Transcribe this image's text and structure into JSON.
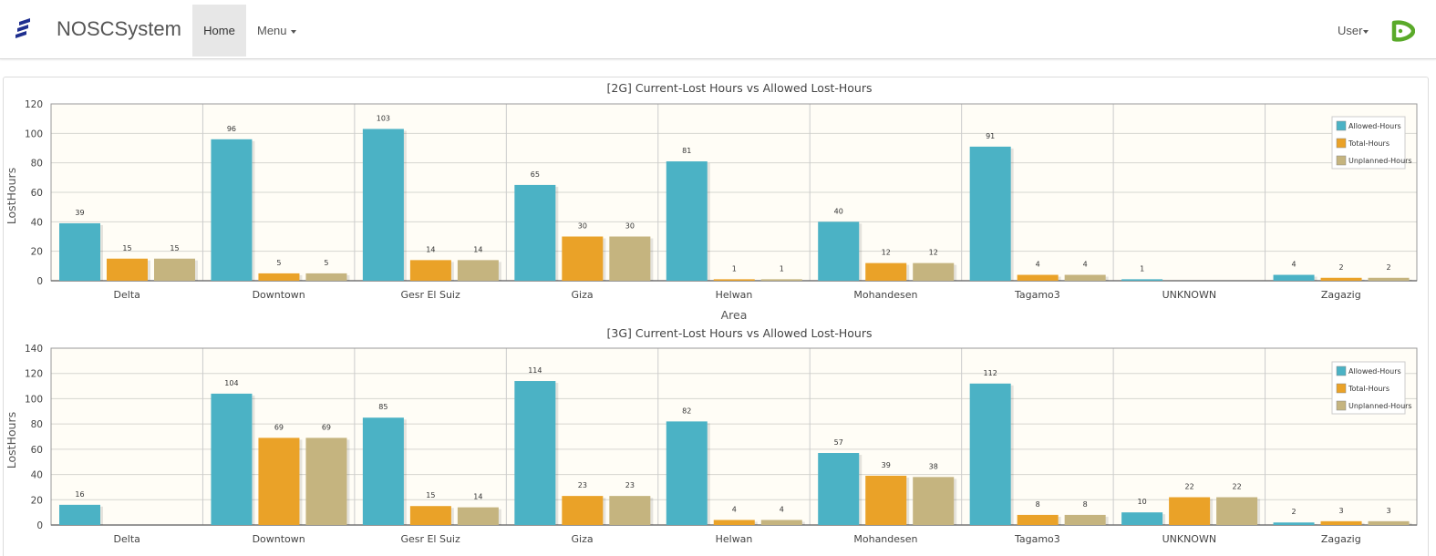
{
  "navbar": {
    "brand": "NOSCSystem",
    "home_label": "Home",
    "menu_label": "Menu",
    "user_label": "User"
  },
  "colors": {
    "allowed": "#4bb2c5",
    "total": "#eaa228",
    "unplanned": "#c5b47f",
    "plot_bg": "#fffdf6",
    "grid": "#cccccc"
  },
  "chart_data": [
    {
      "type": "bar",
      "title": "[2G] Current-Lost Hours vs Allowed Lost-Hours",
      "xlabel": "Area",
      "ylabel": "LostHours",
      "ylim": [
        0,
        120
      ],
      "yticks": [
        0,
        20,
        40,
        60,
        80,
        100,
        120
      ],
      "categories": [
        "Delta",
        "Downtown",
        "Gesr El Suiz",
        "Giza",
        "Helwan",
        "Mohandesen",
        "Tagamo3",
        "UNKNOWN",
        "Zagazig"
      ],
      "series": [
        {
          "name": "Allowed-Hours",
          "values": [
            39,
            96,
            103,
            65,
            81,
            40,
            91,
            1,
            4
          ]
        },
        {
          "name": "Total-Hours",
          "values": [
            15,
            5,
            14,
            30,
            1,
            12,
            4,
            null,
            2
          ]
        },
        {
          "name": "Unplanned-Hours",
          "values": [
            15,
            5,
            14,
            30,
            1,
            12,
            4,
            null,
            2
          ]
        }
      ],
      "grid": true,
      "legend": "top-right"
    },
    {
      "type": "bar",
      "title": "[3G] Current-Lost Hours vs Allowed Lost-Hours",
      "xlabel": "",
      "ylabel": "LostHours",
      "ylim": [
        0,
        140
      ],
      "yticks": [
        0,
        20,
        40,
        60,
        80,
        100,
        120,
        140
      ],
      "categories": [
        "Delta",
        "Downtown",
        "Gesr El Suiz",
        "Giza",
        "Helwan",
        "Mohandesen",
        "Tagamo3",
        "UNKNOWN",
        "Zagazig"
      ],
      "series": [
        {
          "name": "Allowed-Hours",
          "values": [
            16,
            104,
            85,
            114,
            82,
            57,
            112,
            10,
            2
          ]
        },
        {
          "name": "Total-Hours",
          "values": [
            null,
            69,
            15,
            23,
            4,
            39,
            8,
            22,
            3
          ]
        },
        {
          "name": "Unplanned-Hours",
          "values": [
            null,
            69,
            14,
            23,
            4,
            38,
            8,
            22,
            3
          ]
        }
      ],
      "grid": true,
      "legend": "top-right"
    }
  ]
}
